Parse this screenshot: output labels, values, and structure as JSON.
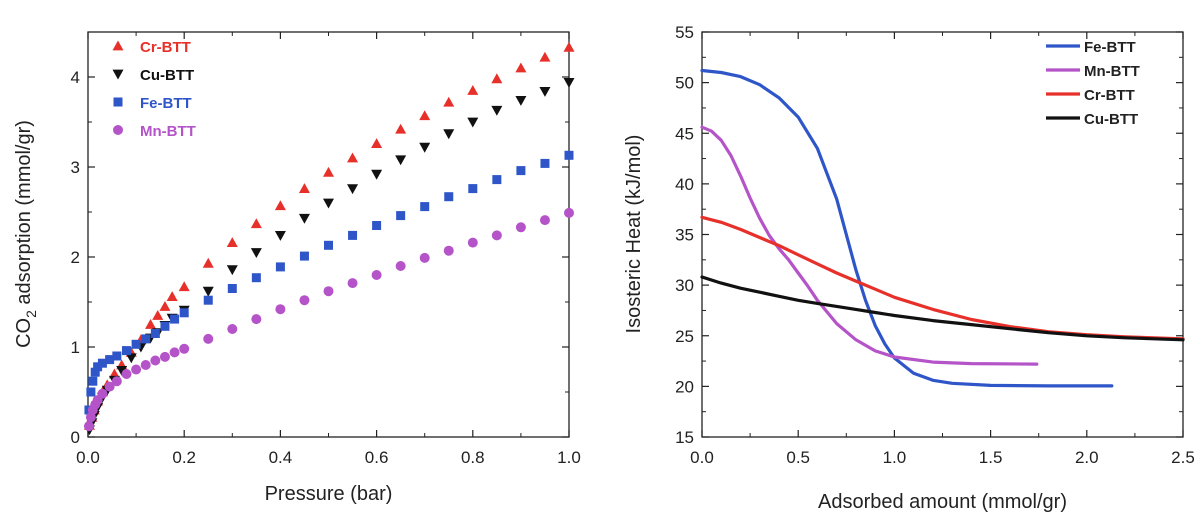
{
  "chart_data": [
    {
      "type": "scatter",
      "xlabel": "Pressure (bar)",
      "ylabel_parts": [
        "CO",
        "2",
        " adsorption (mmol/gr)"
      ],
      "xlim": [
        0,
        1.0
      ],
      "ylim": [
        0,
        4.5
      ],
      "xticks": [
        "0.0",
        "0.2",
        "0.4",
        "0.6",
        "0.8",
        "1.0"
      ],
      "xtick_values": [
        0,
        0.2,
        0.4,
        0.6,
        0.8,
        1.0
      ],
      "yticks": [
        "0",
        "1",
        "2",
        "3",
        "4"
      ],
      "ytick_values": [
        0,
        1,
        2,
        3,
        4
      ],
      "legend_position": "top-left",
      "grid": false,
      "series": [
        {
          "name": "Cr-BTT",
          "color": "#e8302a",
          "marker": "triangle-up",
          "points": [
            [
              0.003,
              0.13
            ],
            [
              0.008,
              0.22
            ],
            [
              0.013,
              0.3
            ],
            [
              0.02,
              0.4
            ],
            [
              0.03,
              0.5
            ],
            [
              0.04,
              0.58
            ],
            [
              0.055,
              0.7
            ],
            [
              0.07,
              0.8
            ],
            [
              0.09,
              0.94
            ],
            [
              0.11,
              1.08
            ],
            [
              0.13,
              1.25
            ],
            [
              0.145,
              1.35
            ],
            [
              0.16,
              1.45
            ],
            [
              0.175,
              1.56
            ],
            [
              0.2,
              1.67
            ],
            [
              0.25,
              1.93
            ],
            [
              0.3,
              2.16
            ],
            [
              0.35,
              2.37
            ],
            [
              0.4,
              2.57
            ],
            [
              0.45,
              2.76
            ],
            [
              0.5,
              2.94
            ],
            [
              0.55,
              3.1
            ],
            [
              0.6,
              3.26
            ],
            [
              0.65,
              3.42
            ],
            [
              0.7,
              3.57
            ],
            [
              0.75,
              3.72
            ],
            [
              0.8,
              3.85
            ],
            [
              0.85,
              3.98
            ],
            [
              0.9,
              4.1
            ],
            [
              0.95,
              4.22
            ],
            [
              1.0,
              4.33
            ]
          ]
        },
        {
          "name": "Cu-BTT",
          "color": "#111111",
          "marker": "triangle-down",
          "points": [
            [
              0.003,
              0.08
            ],
            [
              0.008,
              0.16
            ],
            [
              0.013,
              0.24
            ],
            [
              0.02,
              0.33
            ],
            [
              0.03,
              0.44
            ],
            [
              0.04,
              0.52
            ],
            [
              0.055,
              0.63
            ],
            [
              0.07,
              0.74
            ],
            [
              0.09,
              0.88
            ],
            [
              0.11,
              1.0
            ],
            [
              0.13,
              1.1
            ],
            [
              0.145,
              1.16
            ],
            [
              0.16,
              1.24
            ],
            [
              0.175,
              1.32
            ],
            [
              0.2,
              1.41
            ],
            [
              0.25,
              1.62
            ],
            [
              0.3,
              1.86
            ],
            [
              0.35,
              2.05
            ],
            [
              0.4,
              2.24
            ],
            [
              0.45,
              2.43
            ],
            [
              0.5,
              2.6
            ],
            [
              0.55,
              2.76
            ],
            [
              0.6,
              2.92
            ],
            [
              0.65,
              3.08
            ],
            [
              0.7,
              3.22
            ],
            [
              0.75,
              3.37
            ],
            [
              0.8,
              3.5
            ],
            [
              0.85,
              3.63
            ],
            [
              0.9,
              3.74
            ],
            [
              0.95,
              3.84
            ],
            [
              1.0,
              3.94
            ]
          ]
        },
        {
          "name": "Fe-BTT",
          "color": "#2f56c8",
          "marker": "square",
          "points": [
            [
              0.002,
              0.3
            ],
            [
              0.006,
              0.5
            ],
            [
              0.01,
              0.62
            ],
            [
              0.015,
              0.72
            ],
            [
              0.02,
              0.78
            ],
            [
              0.03,
              0.82
            ],
            [
              0.045,
              0.86
            ],
            [
              0.06,
              0.9
            ],
            [
              0.08,
              0.96
            ],
            [
              0.1,
              1.03
            ],
            [
              0.12,
              1.09
            ],
            [
              0.14,
              1.15
            ],
            [
              0.16,
              1.23
            ],
            [
              0.18,
              1.31
            ],
            [
              0.2,
              1.38
            ],
            [
              0.25,
              1.52
            ],
            [
              0.3,
              1.65
            ],
            [
              0.35,
              1.77
            ],
            [
              0.4,
              1.89
            ],
            [
              0.45,
              2.01
            ],
            [
              0.5,
              2.13
            ],
            [
              0.55,
              2.24
            ],
            [
              0.6,
              2.35
            ],
            [
              0.65,
              2.46
            ],
            [
              0.7,
              2.56
            ],
            [
              0.75,
              2.67
            ],
            [
              0.8,
              2.76
            ],
            [
              0.85,
              2.86
            ],
            [
              0.9,
              2.96
            ],
            [
              0.95,
              3.04
            ],
            [
              1.0,
              3.13
            ]
          ]
        },
        {
          "name": "Mn-BTT",
          "color": "#b554c8",
          "marker": "circle",
          "points": [
            [
              0.002,
              0.12
            ],
            [
              0.006,
              0.22
            ],
            [
              0.01,
              0.3
            ],
            [
              0.015,
              0.36
            ],
            [
              0.02,
              0.41
            ],
            [
              0.03,
              0.48
            ],
            [
              0.045,
              0.56
            ],
            [
              0.06,
              0.62
            ],
            [
              0.08,
              0.7
            ],
            [
              0.1,
              0.75
            ],
            [
              0.12,
              0.8
            ],
            [
              0.14,
              0.85
            ],
            [
              0.16,
              0.89
            ],
            [
              0.18,
              0.94
            ],
            [
              0.2,
              0.98
            ],
            [
              0.25,
              1.09
            ],
            [
              0.3,
              1.2
            ],
            [
              0.35,
              1.31
            ],
            [
              0.4,
              1.42
            ],
            [
              0.45,
              1.52
            ],
            [
              0.5,
              1.62
            ],
            [
              0.55,
              1.71
            ],
            [
              0.6,
              1.8
            ],
            [
              0.65,
              1.9
            ],
            [
              0.7,
              1.99
            ],
            [
              0.75,
              2.07
            ],
            [
              0.8,
              2.16
            ],
            [
              0.85,
              2.24
            ],
            [
              0.9,
              2.33
            ],
            [
              0.95,
              2.41
            ],
            [
              1.0,
              2.49
            ]
          ]
        }
      ]
    },
    {
      "type": "line",
      "xlabel": "Adsorbed amount (mmol/gr)",
      "ylabel": "Isosteric Heat (kJ/mol)",
      "xlim": [
        0,
        2.5
      ],
      "ylim": [
        15,
        55
      ],
      "xticks": [
        "0.0",
        "0.5",
        "1.0",
        "1.5",
        "2.0",
        "2.5"
      ],
      "xtick_values": [
        0,
        0.5,
        1.0,
        1.5,
        2.0,
        2.5
      ],
      "yticks": [
        "15",
        "20",
        "25",
        "30",
        "35",
        "40",
        "45",
        "50",
        "55"
      ],
      "ytick_values": [
        15,
        20,
        25,
        30,
        35,
        40,
        45,
        50,
        55
      ],
      "legend_position": "top-right",
      "grid": false,
      "series": [
        {
          "name": "Fe-BTT",
          "color": "#2f56c8",
          "points": [
            [
              0,
              51.2
            ],
            [
              0.1,
              51.0
            ],
            [
              0.2,
              50.6
            ],
            [
              0.3,
              49.8
            ],
            [
              0.4,
              48.5
            ],
            [
              0.5,
              46.6
            ],
            [
              0.6,
              43.5
            ],
            [
              0.7,
              38.5
            ],
            [
              0.75,
              35.0
            ],
            [
              0.8,
              31.5
            ],
            [
              0.85,
              28.5
            ],
            [
              0.9,
              26.0
            ],
            [
              0.95,
              24.2
            ],
            [
              1.0,
              22.8
            ],
            [
              1.1,
              21.3
            ],
            [
              1.2,
              20.6
            ],
            [
              1.3,
              20.3
            ],
            [
              1.5,
              20.1
            ],
            [
              1.8,
              20.05
            ],
            [
              2.13,
              20.05
            ]
          ]
        },
        {
          "name": "Mn-BTT",
          "color": "#b554c8",
          "points": [
            [
              0,
              45.6
            ],
            [
              0.05,
              45.2
            ],
            [
              0.1,
              44.3
            ],
            [
              0.15,
              42.8
            ],
            [
              0.2,
              40.8
            ],
            [
              0.25,
              38.6
            ],
            [
              0.3,
              36.6
            ],
            [
              0.35,
              34.9
            ],
            [
              0.4,
              33.6
            ],
            [
              0.45,
              32.5
            ],
            [
              0.5,
              31.2
            ],
            [
              0.55,
              29.9
            ],
            [
              0.6,
              28.5
            ],
            [
              0.7,
              26.2
            ],
            [
              0.8,
              24.6
            ],
            [
              0.9,
              23.5
            ],
            [
              1.0,
              22.9
            ],
            [
              1.2,
              22.4
            ],
            [
              1.4,
              22.25
            ],
            [
              1.74,
              22.2
            ]
          ]
        },
        {
          "name": "Cr-BTT",
          "color": "#e8302a",
          "points": [
            [
              0,
              36.7
            ],
            [
              0.1,
              36.2
            ],
            [
              0.2,
              35.5
            ],
            [
              0.3,
              34.7
            ],
            [
              0.4,
              33.9
            ],
            [
              0.5,
              33.0
            ],
            [
              0.6,
              32.1
            ],
            [
              0.7,
              31.2
            ],
            [
              0.8,
              30.4
            ],
            [
              0.9,
              29.6
            ],
            [
              1.0,
              28.8
            ],
            [
              1.2,
              27.6
            ],
            [
              1.4,
              26.6
            ],
            [
              1.6,
              25.9
            ],
            [
              1.8,
              25.4
            ],
            [
              2.0,
              25.1
            ],
            [
              2.2,
              24.9
            ],
            [
              2.5,
              24.7
            ]
          ]
        },
        {
          "name": "Cu-BTT",
          "color": "#111111",
          "points": [
            [
              0,
              30.8
            ],
            [
              0.1,
              30.2
            ],
            [
              0.2,
              29.7
            ],
            [
              0.3,
              29.3
            ],
            [
              0.4,
              28.9
            ],
            [
              0.5,
              28.5
            ],
            [
              0.6,
              28.2
            ],
            [
              0.7,
              27.9
            ],
            [
              0.8,
              27.6
            ],
            [
              0.9,
              27.3
            ],
            [
              1.0,
              27.0
            ],
            [
              1.2,
              26.5
            ],
            [
              1.4,
              26.1
            ],
            [
              1.6,
              25.7
            ],
            [
              1.8,
              25.3
            ],
            [
              2.0,
              25.0
            ],
            [
              2.2,
              24.8
            ],
            [
              2.5,
              24.6
            ]
          ]
        }
      ]
    }
  ]
}
